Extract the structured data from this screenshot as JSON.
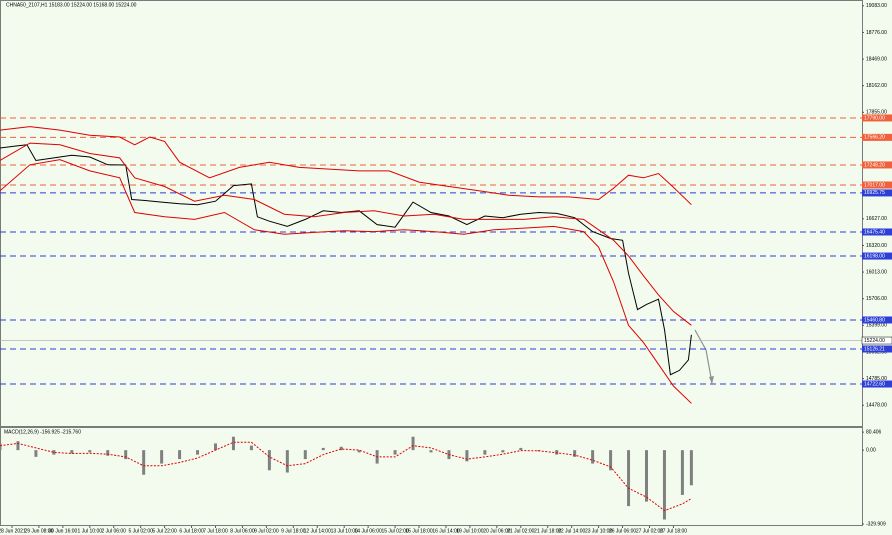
{
  "chart_data": [
    {
      "type": "line",
      "title": "CHNA50_2107,H1  15183.00 15224.00 15168.00 15224.00",
      "xlim": [
        0,
        288
      ],
      "ylim": [
        14250,
        19150
      ],
      "yticks": [
        {
          "value": 19083,
          "label": "19083.00"
        },
        {
          "value": 18776,
          "label": "18776.00"
        },
        {
          "value": 18469,
          "label": "18469.00"
        },
        {
          "value": 18162,
          "label": "18162.00"
        },
        {
          "value": 17855,
          "label": "17855.00"
        },
        {
          "value": 17548,
          "label": "17548.00"
        },
        {
          "value": 17241,
          "label": "17241.00"
        },
        {
          "value": 16934,
          "label": "16934.00"
        },
        {
          "value": 16627,
          "label": "16627.00"
        },
        {
          "value": 16320,
          "label": "16320.00"
        },
        {
          "value": 16013,
          "label": "16013.00"
        },
        {
          "value": 15706,
          "label": "15706.00"
        },
        {
          "value": 15399,
          "label": "15399.00"
        },
        {
          "value": 15092,
          "label": "15092.00"
        },
        {
          "value": 14785,
          "label": "14785.00"
        },
        {
          "value": 14478,
          "label": "14478.00"
        }
      ],
      "series": [
        {
          "color": "#000000",
          "x": [
            0,
            6,
            9,
            12,
            18,
            24,
            30,
            36,
            42,
            44,
            48,
            54,
            60,
            66,
            72,
            78,
            84,
            86,
            90,
            96,
            102,
            108,
            114,
            120,
            126,
            132,
            138,
            144,
            150,
            156,
            162,
            168,
            174,
            180,
            186,
            192,
            198,
            204,
            208,
            210,
            213,
            216,
            220,
            222,
            224,
            227,
            230,
            231
          ],
          "values": [
            17444,
            17470,
            17480,
            17300,
            17330,
            17360,
            17340,
            17250,
            17248,
            16850,
            16840,
            16820,
            16800,
            16790,
            16830,
            17010,
            17030,
            16650,
            16600,
            16540,
            16620,
            16720,
            16700,
            16720,
            16560,
            16530,
            16820,
            16700,
            16660,
            16560,
            16660,
            16640,
            16680,
            16700,
            16690,
            16640,
            16480,
            16400,
            16380,
            16000,
            15580,
            15640,
            15700,
            15350,
            14830,
            14880,
            15000,
            15290
          ]
        },
        {
          "color": "#e00000",
          "x": [
            0,
            10,
            20,
            30,
            40,
            45,
            50,
            55,
            60,
            70,
            80,
            90,
            100,
            110,
            120,
            130,
            140,
            150,
            160,
            170,
            180,
            190,
            200,
            205,
            210,
            215,
            220,
            225,
            231
          ],
          "values": [
            17650,
            17690,
            17650,
            17590,
            17570,
            17480,
            17570,
            17520,
            17280,
            17100,
            17220,
            17280,
            17220,
            17200,
            17180,
            17180,
            17050,
            17000,
            16950,
            16900,
            16880,
            16880,
            16850,
            16980,
            17130,
            17100,
            17150,
            16990,
            16790
          ]
        },
        {
          "color": "#e00000",
          "x": [
            0,
            10,
            20,
            30,
            40,
            45,
            55,
            65,
            75,
            85,
            95,
            105,
            115,
            125,
            135,
            145,
            155,
            165,
            175,
            185,
            195,
            200,
            205,
            210,
            215,
            220,
            225,
            231
          ],
          "values": [
            17300,
            17500,
            17480,
            17380,
            17330,
            17100,
            17000,
            16830,
            16900,
            16850,
            16680,
            16650,
            16700,
            16720,
            16660,
            16680,
            16620,
            16620,
            16620,
            16650,
            16620,
            16500,
            16380,
            16200,
            15970,
            15750,
            15560,
            15400
          ]
        },
        {
          "color": "#e00000",
          "x": [
            0,
            10,
            20,
            30,
            40,
            45,
            55,
            65,
            75,
            85,
            95,
            105,
            115,
            125,
            135,
            145,
            155,
            165,
            175,
            185,
            195,
            200,
            205,
            210,
            215,
            220,
            225,
            231
          ],
          "values": [
            16950,
            17250,
            17310,
            17180,
            17100,
            16700,
            16650,
            16620,
            16700,
            16500,
            16450,
            16470,
            16490,
            16480,
            16500,
            16480,
            16450,
            16500,
            16520,
            16540,
            16480,
            16300,
            15900,
            15400,
            15200,
            14950,
            14700,
            14500
          ]
        }
      ],
      "levels": [
        {
          "value": 17790,
          "label": "17790.00",
          "color": "#f0603c"
        },
        {
          "value": 17566.2,
          "label": "17566.20",
          "color": "#f0603c"
        },
        {
          "value": 17248.2,
          "label": "17248.20",
          "color": "#f0603c"
        },
        {
          "value": 17017,
          "label": "17017.00",
          "color": "#f0603c"
        },
        {
          "value": 16925.75,
          "label": "16925.75",
          "color": "#2d3fd6"
        },
        {
          "value": 16475.4,
          "label": "16475.40",
          "color": "#2d3fd6"
        },
        {
          "value": 16198,
          "label": "16198.00",
          "color": "#2d3fd6"
        },
        {
          "value": 15460.8,
          "label": "15460.80",
          "color": "#2d3fd6"
        },
        {
          "value": 15126.21,
          "label": "15126.21",
          "color": "#2d3fd6"
        },
        {
          "value": 14722.6,
          "label": "14722.60",
          "color": "#2d3fd6"
        }
      ],
      "current_price": {
        "value": 15224,
        "label": "15224.00"
      }
    },
    {
      "type": "bar",
      "title": "MACD(12,26,9) -156.925 -215.760",
      "xlim": [
        0,
        288
      ],
      "ylim": [
        -330,
        90
      ],
      "yticks": [
        {
          "value": 80.406,
          "label": "80.406"
        },
        {
          "value": 0,
          "label": "0.00"
        },
        {
          "value": -329.909,
          "label": "-329.909"
        }
      ],
      "xticks": [
        {
          "value": 4,
          "label": "28 Jun 2021"
        },
        {
          "value": 13,
          "label": "29 Jun 08:00"
        },
        {
          "value": 21,
          "label": "30 Jun 16:00"
        },
        {
          "value": 30,
          "label": "1 Jul 10:00"
        },
        {
          "value": 38,
          "label": "2 Jul 06:00"
        },
        {
          "value": 47,
          "label": "5 Jul 02:00"
        },
        {
          "value": 55,
          "label": "5 Jul 22:00"
        },
        {
          "value": 64,
          "label": "6 Jul 18:00"
        },
        {
          "value": 72,
          "label": "7 Jul 18:00"
        },
        {
          "value": 81,
          "label": "8 Jul 06:00"
        },
        {
          "value": 89,
          "label": "9 Jul 02:00"
        },
        {
          "value": 98,
          "label": "9 Jul 18:00"
        },
        {
          "value": 106,
          "label": "12 Jul 14:00"
        },
        {
          "value": 115,
          "label": "13 Jul 10:00"
        },
        {
          "value": 123,
          "label": "14 Jul 06:00"
        },
        {
          "value": 132,
          "label": "15 Jul 02:00"
        },
        {
          "value": 140,
          "label": "15 Jul 18:00"
        },
        {
          "value": 149,
          "label": "16 Jul 14:00"
        },
        {
          "value": 157,
          "label": "19 Jul 10:00"
        },
        {
          "value": 166,
          "label": "20 Jul 06:00"
        },
        {
          "value": 174,
          "label": "21 Jul 02:00"
        },
        {
          "value": 183,
          "label": "21 Jul 18:00"
        },
        {
          "value": 191,
          "label": "22 Jul 14:00"
        },
        {
          "value": 200,
          "label": "23 Jul 10:00"
        },
        {
          "value": 208,
          "label": "26 Jul 06:00"
        },
        {
          "value": 217,
          "label": "27 Jul 02:00"
        },
        {
          "value": 225,
          "label": "27 Jul 18:00"
        }
      ],
      "x": [
        0,
        6,
        12,
        18,
        24,
        30,
        36,
        42,
        48,
        54,
        60,
        66,
        72,
        78,
        84,
        90,
        96,
        102,
        108,
        114,
        120,
        126,
        132,
        138,
        144,
        150,
        156,
        162,
        168,
        174,
        180,
        186,
        192,
        198,
        204,
        210,
        216,
        222,
        228,
        231
      ],
      "values": [
        30,
        40,
        -30,
        -20,
        -15,
        -10,
        -25,
        -40,
        -110,
        -60,
        -40,
        -20,
        30,
        60,
        20,
        -90,
        -100,
        -40,
        10,
        15,
        -10,
        -60,
        -20,
        60,
        -10,
        -40,
        -50,
        -20,
        -10,
        10,
        -5,
        -20,
        -30,
        -60,
        -90,
        -250,
        -230,
        -310,
        -200,
        -157
      ],
      "color": "#808080",
      "series": [
        {
          "color": "#e00000",
          "x": [
            0,
            6,
            12,
            18,
            24,
            30,
            36,
            42,
            48,
            54,
            60,
            66,
            72,
            78,
            84,
            90,
            96,
            102,
            108,
            114,
            120,
            126,
            132,
            138,
            144,
            150,
            156,
            162,
            168,
            174,
            180,
            186,
            192,
            198,
            204,
            210,
            216,
            222,
            228,
            231
          ],
          "values": [
            20,
            30,
            10,
            -10,
            -15,
            -14,
            -18,
            -30,
            -70,
            -70,
            -55,
            -35,
            0,
            35,
            35,
            -30,
            -70,
            -60,
            -20,
            5,
            0,
            -30,
            -30,
            20,
            10,
            -20,
            -40,
            -30,
            -18,
            -2,
            -3,
            -12,
            -22,
            -45,
            -75,
            -170,
            -210,
            -270,
            -240,
            -216
          ]
        }
      ]
    }
  ]
}
